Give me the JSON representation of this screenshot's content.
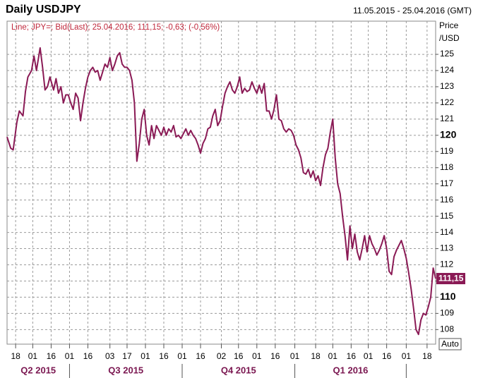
{
  "chart_data": {
    "type": "line",
    "title": "Daily USDJPY",
    "date_range": "11.05.2015 - 25.04.2016 (GMT)",
    "legend_text": "Line; JPY=; Bid(Last); 25.04.2016; 111,15; -0,63; (-0,56%)",
    "axis_label_top": "Price",
    "axis_label_unit": "/USD",
    "auto_button": "Auto",
    "last_value_label": "111,15",
    "grid": true,
    "ylim": [
      107.1,
      127.05
    ],
    "yticks": [
      108,
      109,
      110,
      111,
      112,
      113,
      114,
      115,
      116,
      117,
      118,
      119,
      120,
      121,
      122,
      123,
      124,
      125
    ],
    "bold_yticks": [
      110,
      120
    ],
    "xlim": [
      0,
      350
    ],
    "xticks": [
      {
        "value": 7,
        "label": "18"
      },
      {
        "value": 21,
        "label": "01"
      },
      {
        "value": 36,
        "label": "16"
      },
      {
        "value": 51,
        "label": "01"
      },
      {
        "value": 66,
        "label": "16"
      },
      {
        "value": 84,
        "label": "03"
      },
      {
        "value": 98,
        "label": "17"
      },
      {
        "value": 113,
        "label": "01"
      },
      {
        "value": 128,
        "label": "16"
      },
      {
        "value": 143,
        "label": "01"
      },
      {
        "value": 158,
        "label": "16"
      },
      {
        "value": 175,
        "label": "02"
      },
      {
        "value": 189,
        "label": "16"
      },
      {
        "value": 204,
        "label": "01"
      },
      {
        "value": 219,
        "label": "16"
      },
      {
        "value": 235,
        "label": "01"
      },
      {
        "value": 252,
        "label": "18"
      },
      {
        "value": 266,
        "label": "01"
      },
      {
        "value": 281,
        "label": "16"
      },
      {
        "value": 295,
        "label": "01"
      },
      {
        "value": 310,
        "label": "16"
      },
      {
        "value": 326,
        "label": "01"
      },
      {
        "value": 343,
        "label": "18"
      }
    ],
    "quarter_separators": [
      51,
      143,
      235,
      326
    ],
    "quarter_labels": [
      "Q2 2015",
      "Q3 2015",
      "Q4 2015",
      "Q1 2016"
    ],
    "series": [
      {
        "color": "#8a1a55",
        "x": [
          0,
          3,
          5,
          8,
          10,
          13,
          15,
          17,
          20,
          22,
          24,
          27,
          29,
          31,
          33,
          35,
          38,
          40,
          42,
          44,
          46,
          48,
          50,
          52,
          54,
          56,
          58,
          60,
          62,
          64,
          66,
          68,
          70,
          72,
          74,
          76,
          78,
          80,
          82,
          84,
          86,
          88,
          90,
          92,
          94,
          96,
          98,
          100,
          102,
          104,
          106,
          108,
          110,
          112,
          114,
          116,
          118,
          120,
          122,
          124,
          126,
          128,
          130,
          132,
          134,
          136,
          138,
          140,
          142,
          144,
          146,
          148,
          150,
          152,
          154,
          156,
          158,
          160,
          162,
          164,
          166,
          168,
          170,
          172,
          174,
          176,
          178,
          180,
          182,
          184,
          186,
          188,
          190,
          192,
          194,
          196,
          198,
          200,
          202,
          204,
          206,
          208,
          210,
          212,
          214,
          216,
          218,
          220,
          222,
          224,
          226,
          228,
          230,
          232,
          234,
          236,
          238,
          240,
          242,
          244,
          246,
          248,
          250,
          252,
          254,
          256,
          258,
          260,
          262,
          264,
          266,
          268,
          270,
          272,
          274,
          276,
          278,
          280,
          282,
          284,
          286,
          288,
          290,
          292,
          294,
          296,
          298,
          300,
          302,
          304,
          306,
          308,
          310,
          312,
          314,
          316,
          318,
          320,
          322,
          324,
          326,
          328,
          330,
          332,
          334,
          336,
          338,
          340,
          342,
          344,
          346,
          348,
          350
        ],
        "values": [
          119.9,
          119.2,
          119.1,
          120.8,
          121.5,
          121.2,
          122.7,
          123.6,
          124.0,
          124.9,
          124.0,
          125.4,
          124.2,
          122.8,
          123.0,
          123.6,
          122.8,
          123.5,
          122.6,
          123.0,
          122.0,
          122.5,
          122.5,
          122.0,
          121.6,
          122.6,
          122.3,
          120.9,
          122.0,
          122.9,
          123.6,
          124.0,
          124.2,
          123.9,
          124.0,
          123.4,
          123.9,
          124.4,
          124.2,
          124.8,
          124.0,
          124.4,
          124.9,
          125.1,
          124.4,
          124.2,
          124.2,
          124.0,
          123.4,
          122.0,
          118.4,
          119.5,
          121.0,
          121.6,
          120.0,
          119.4,
          120.6,
          119.8,
          120.6,
          120.3,
          120.0,
          120.5,
          120.0,
          120.4,
          120.2,
          120.6,
          119.9,
          120.0,
          119.8,
          120.1,
          120.4,
          120.0,
          120.3,
          120.0,
          119.8,
          119.4,
          118.9,
          119.5,
          119.8,
          120.4,
          120.5,
          121.2,
          121.6,
          120.6,
          120.9,
          121.8,
          122.6,
          123.0,
          123.3,
          122.8,
          122.6,
          123.0,
          123.6,
          122.6,
          122.9,
          122.7,
          122.8,
          123.3,
          122.9,
          122.6,
          123.1,
          122.6,
          123.2,
          121.5,
          121.5,
          121.0,
          121.6,
          122.5,
          121.0,
          120.9,
          120.4,
          120.2,
          120.4,
          120.3,
          120.0,
          119.4,
          119.1,
          118.6,
          117.7,
          117.6,
          117.9,
          117.4,
          117.8,
          117.2,
          117.5,
          116.9,
          118.0,
          118.8,
          119.2,
          120.2,
          121.0,
          118.6,
          117.0,
          116.4,
          115.0,
          113.8,
          112.3,
          114.4,
          113.0,
          113.9,
          112.8,
          112.3,
          113.0,
          113.8,
          112.8,
          113.8,
          113.3,
          113.0,
          112.6,
          112.9,
          113.3,
          113.8,
          113.0,
          111.6,
          111.4,
          112.5,
          112.9,
          113.2,
          113.5,
          113.0,
          112.4,
          111.5,
          110.5,
          109.3,
          108.0,
          107.7,
          108.6,
          109.0,
          108.9,
          109.4,
          110.0,
          111.8,
          111.15
        ]
      }
    ]
  }
}
